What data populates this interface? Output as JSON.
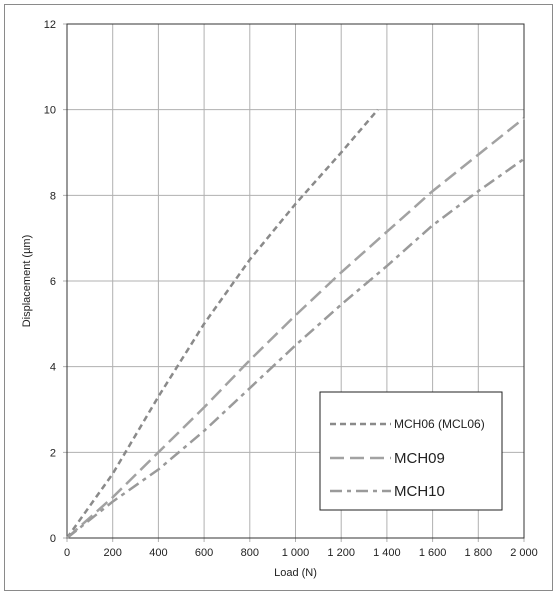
{
  "chart_data": {
    "type": "line",
    "xlabel": "Load (N)",
    "ylabel": "Displacement (µm)",
    "xlim": [
      0,
      2000
    ],
    "ylim": [
      0,
      12
    ],
    "x_ticks": [
      0,
      200,
      400,
      600,
      800,
      1000,
      1200,
      1400,
      1600,
      1800,
      2000
    ],
    "x_tick_labels": [
      "0",
      "200",
      "400",
      "600",
      "800",
      "1 000",
      "1 200",
      "1 400",
      "1 600",
      "1 800",
      "2 000"
    ],
    "y_ticks": [
      0,
      2,
      4,
      6,
      8,
      10,
      12
    ],
    "y_tick_labels": [
      "0",
      "2",
      "4",
      "6",
      "8",
      "10",
      "12"
    ],
    "grid": true,
    "legend_position": "bottom-right",
    "series": [
      {
        "name": "MCH06 (MCL06)",
        "color": "#8a8a8a",
        "dash": "short",
        "x": [
          0,
          200,
          400,
          600,
          800,
          1000,
          1200,
          1360
        ],
        "y": [
          0,
          1.5,
          3.3,
          5.0,
          6.5,
          7.8,
          9.0,
          10.0
        ]
      },
      {
        "name": "MCH09",
        "color": "#a2a2a2",
        "dash": "long",
        "x": [
          0,
          200,
          400,
          600,
          800,
          1000,
          1200,
          1400,
          1600,
          1800,
          2000
        ],
        "y": [
          0,
          0.95,
          2.0,
          3.05,
          4.15,
          5.2,
          6.2,
          7.15,
          8.1,
          8.95,
          9.8
        ]
      },
      {
        "name": "MCH10",
        "color": "#9a9a9a",
        "dash": "dash-dot",
        "x": [
          0,
          200,
          400,
          600,
          800,
          1000,
          1200,
          1400,
          1600,
          1800,
          2000
        ],
        "y": [
          0,
          0.85,
          1.6,
          2.5,
          3.5,
          4.5,
          5.45,
          6.35,
          7.3,
          8.1,
          8.85
        ]
      }
    ]
  }
}
